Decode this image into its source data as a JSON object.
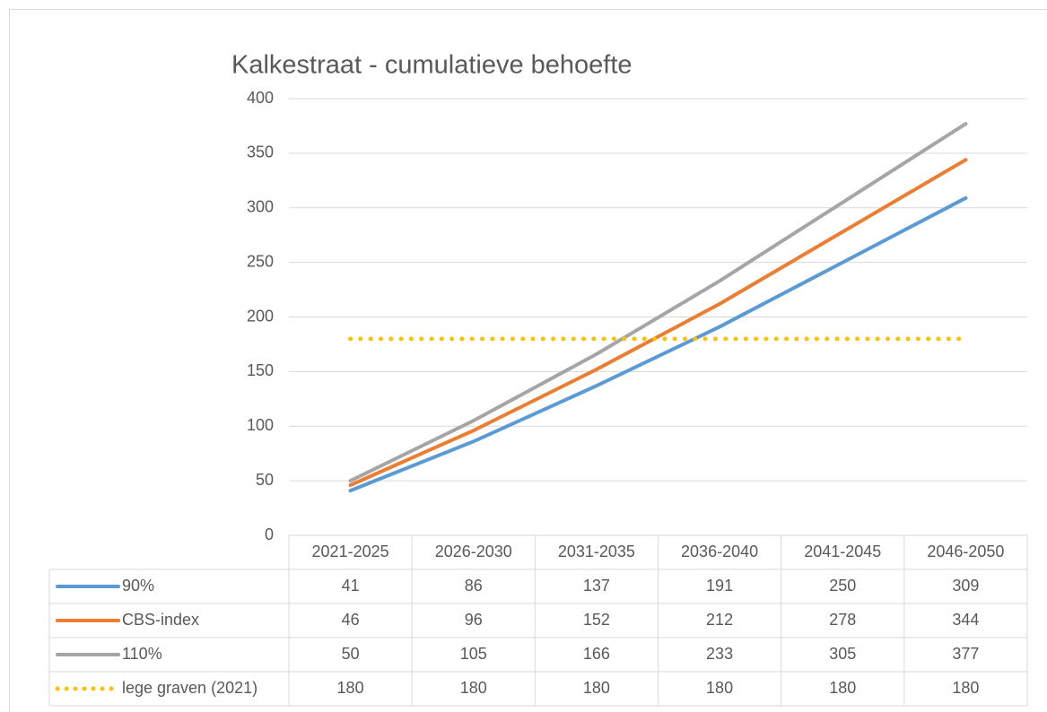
{
  "chart_data": {
    "type": "line",
    "title": "Kalkestraat - cumulatieve behoefte",
    "categories": [
      "2021-2025",
      "2026-2030",
      "2031-2035",
      "2036-2040",
      "2041-2045",
      "2046-2050"
    ],
    "series": [
      {
        "name": "90%",
        "color": "#5b9bd5",
        "values": [
          41,
          86,
          137,
          191,
          250,
          309
        ]
      },
      {
        "name": "CBS-index",
        "color": "#ed7d31",
        "values": [
          46,
          96,
          152,
          212,
          278,
          344
        ]
      },
      {
        "name": "110%",
        "color": "#a5a5a5",
        "values": [
          50,
          105,
          166,
          233,
          305,
          377
        ]
      },
      {
        "name": "lege graven (2021)",
        "color": "#ffc000",
        "style": "dotted",
        "values": [
          180,
          180,
          180,
          180,
          180,
          180
        ]
      }
    ],
    "ylim": [
      0,
      400
    ],
    "yticks": [
      0,
      50,
      100,
      150,
      200,
      250,
      300,
      350,
      400
    ],
    "grid": true,
    "data_table": true
  }
}
